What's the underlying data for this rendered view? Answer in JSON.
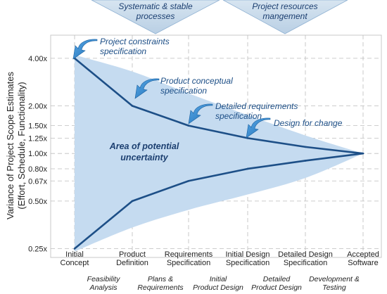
{
  "banners": [
    {
      "lines": [
        "Systematic & stable",
        "processes"
      ]
    },
    {
      "lines": [
        "Project resources",
        "mangement"
      ]
    }
  ],
  "chart_data": {
    "type": "line",
    "title": "",
    "ylabel_lines": [
      "Variance of Project Scope Estimates",
      "(Effort, Schedule, Functionality)"
    ],
    "y_scale": "log2",
    "ylim": [
      0.22,
      5.6
    ],
    "y_ticks": [
      {
        "value": 4.0,
        "label": "4.00x"
      },
      {
        "value": 2.0,
        "label": "2.00x"
      },
      {
        "value": 1.5,
        "label": "1.50x"
      },
      {
        "value": 1.25,
        "label": "1.25x"
      },
      {
        "value": 1.0,
        "label": "1.00x"
      },
      {
        "value": 0.8,
        "label": "0.80x"
      },
      {
        "value": 0.67,
        "label": "0.67x"
      },
      {
        "value": 0.5,
        "label": "0.50x"
      },
      {
        "value": 0.25,
        "label": "0.25x"
      }
    ],
    "milestones": [
      {
        "lines": [
          "Initial",
          "Concept"
        ]
      },
      {
        "lines": [
          "Product",
          "Definition"
        ]
      },
      {
        "lines": [
          "Requirements",
          "Specification"
        ]
      },
      {
        "lines": [
          "Initial Design",
          "Specification"
        ]
      },
      {
        "lines": [
          "Detailed Design",
          "Specification"
        ]
      },
      {
        "lines": [
          "Accepted",
          "Software"
        ]
      }
    ],
    "phases": [
      {
        "lines": [
          "Feasibility",
          "Analysis"
        ]
      },
      {
        "lines": [
          "Plans &",
          "Requirements"
        ]
      },
      {
        "lines": [
          "Initial",
          "Product Design"
        ]
      },
      {
        "lines": [
          "Detailed",
          "Product Design"
        ]
      },
      {
        "lines": [
          "Development &",
          "Testing"
        ]
      }
    ],
    "series": [
      {
        "values": [
          4.0,
          2.0,
          1.5,
          1.25,
          1.1,
          1.0
        ]
      },
      {
        "values": [
          0.25,
          0.5,
          0.67,
          0.8,
          0.9,
          1.0
        ]
      }
    ],
    "uncertainty_upper": [
      4.2,
      3.3,
      2.4,
      1.75,
      1.3,
      1.0
    ],
    "uncertainty_lower": [
      0.24,
      0.34,
      0.44,
      0.55,
      0.7,
      1.0
    ],
    "area_label_lines": [
      "Area of potential",
      "uncertainty"
    ],
    "callouts": [
      {
        "lines": [
          "Project constraints",
          "specification"
        ]
      },
      {
        "lines": [
          "Product conceptual",
          "specification"
        ]
      },
      {
        "lines": [
          "Detailed requirements",
          "specification"
        ]
      },
      {
        "lines": [
          "Design for change"
        ]
      }
    ],
    "colors": {
      "band": "#c5dbf0",
      "line": "#1d4f87",
      "arrow": "#2f87cf",
      "banner": "#c7d9ea",
      "grid": "#bdbdbd"
    }
  }
}
